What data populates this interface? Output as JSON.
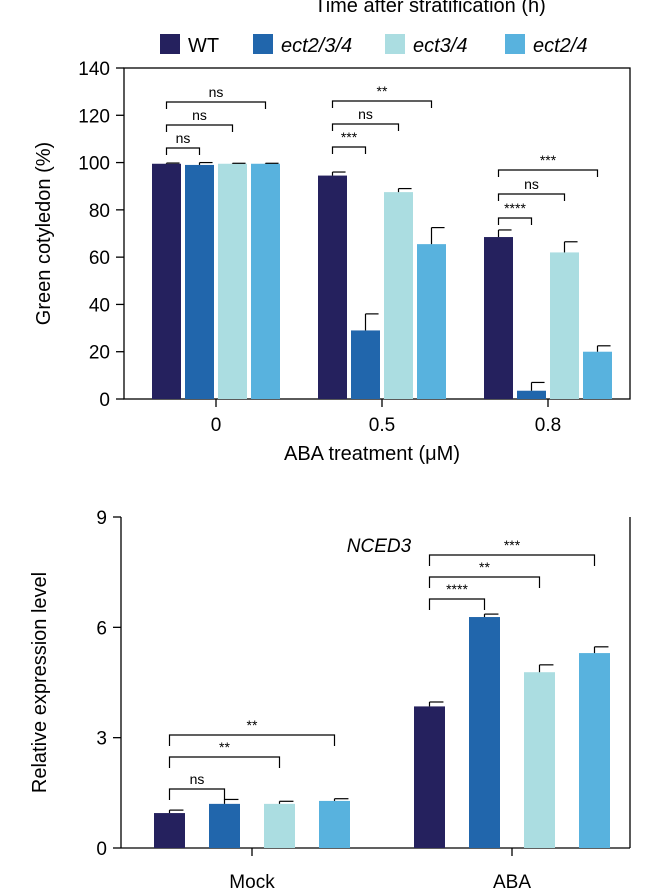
{
  "header_text": "Time after stratification (h)",
  "colors": {
    "WT": "#25215e",
    "ect2/3/4": "#2166ac",
    "ect3/4": "#abdde1",
    "ect2/4": "#58b2de"
  },
  "legend": [
    {
      "label": "WT",
      "italic": false
    },
    {
      "label": "ect2/3/4",
      "italic": true
    },
    {
      "label": "ect3/4",
      "italic": true
    },
    {
      "label": "ect2/4",
      "italic": true
    }
  ],
  "chart_data": [
    {
      "type": "bar",
      "title": "",
      "xlabel": "ABA treatment (μM)",
      "ylabel": "Green cotyledon (%)",
      "ylim": [
        0,
        140
      ],
      "yticks": [
        0,
        20,
        40,
        60,
        80,
        100,
        120,
        140
      ],
      "categories": [
        "0",
        "0.5",
        "0.8"
      ],
      "series": [
        {
          "name": "WT",
          "values": [
            99.5,
            94.5,
            68.5
          ],
          "errors": [
            0.3,
            1.5,
            3.0
          ]
        },
        {
          "name": "ect2/3/4",
          "values": [
            99.0,
            29.0,
            3.5
          ],
          "errors": [
            1.0,
            7.0,
            3.5
          ]
        },
        {
          "name": "ect3/4",
          "values": [
            99.5,
            87.5,
            62.0
          ],
          "errors": [
            0.2,
            1.5,
            4.5
          ]
        },
        {
          "name": "ect2/4",
          "values": [
            99.5,
            65.5,
            20.0
          ],
          "errors": [
            0.2,
            7.0,
            2.5
          ]
        }
      ],
      "significance": [
        {
          "category": 0,
          "from": 0,
          "to": 1,
          "label": "ns"
        },
        {
          "category": 0,
          "from": 0,
          "to": 2,
          "label": "ns"
        },
        {
          "category": 0,
          "from": 0,
          "to": 3,
          "label": "ns"
        },
        {
          "category": 1,
          "from": 0,
          "to": 1,
          "label": "***"
        },
        {
          "category": 1,
          "from": 0,
          "to": 2,
          "label": "ns"
        },
        {
          "category": 1,
          "from": 0,
          "to": 3,
          "label": "**"
        },
        {
          "category": 2,
          "from": 0,
          "to": 1,
          "label": "****"
        },
        {
          "category": 2,
          "from": 0,
          "to": 2,
          "label": "ns"
        },
        {
          "category": 2,
          "from": 0,
          "to": 3,
          "label": "***"
        }
      ]
    },
    {
      "type": "bar",
      "title": "NCED3",
      "xlabel": "",
      "ylabel": "Relative expression level",
      "ylim": [
        0,
        9
      ],
      "yticks": [
        0,
        3,
        6,
        9
      ],
      "categories": [
        "Mock",
        "ABA"
      ],
      "series": [
        {
          "name": "WT",
          "values": [
            0.95,
            3.85
          ],
          "errors": [
            0.08,
            0.12
          ]
        },
        {
          "name": "ect2/3/4",
          "values": [
            1.2,
            6.28
          ],
          "errors": [
            0.12,
            0.08
          ]
        },
        {
          "name": "ect3/4",
          "values": [
            1.2,
            4.78
          ],
          "errors": [
            0.07,
            0.2
          ]
        },
        {
          "name": "ect2/4",
          "values": [
            1.28,
            5.3
          ],
          "errors": [
            0.06,
            0.17
          ]
        }
      ],
      "significance": [
        {
          "category": 0,
          "from": 0,
          "to": 1,
          "label": "ns"
        },
        {
          "category": 0,
          "from": 0,
          "to": 2,
          "label": "**"
        },
        {
          "category": 0,
          "from": 0,
          "to": 3,
          "label": "**"
        },
        {
          "category": 1,
          "from": 0,
          "to": 1,
          "label": "****"
        },
        {
          "category": 1,
          "from": 0,
          "to": 2,
          "label": "**"
        },
        {
          "category": 1,
          "from": 0,
          "to": 3,
          "label": "***"
        }
      ]
    }
  ]
}
